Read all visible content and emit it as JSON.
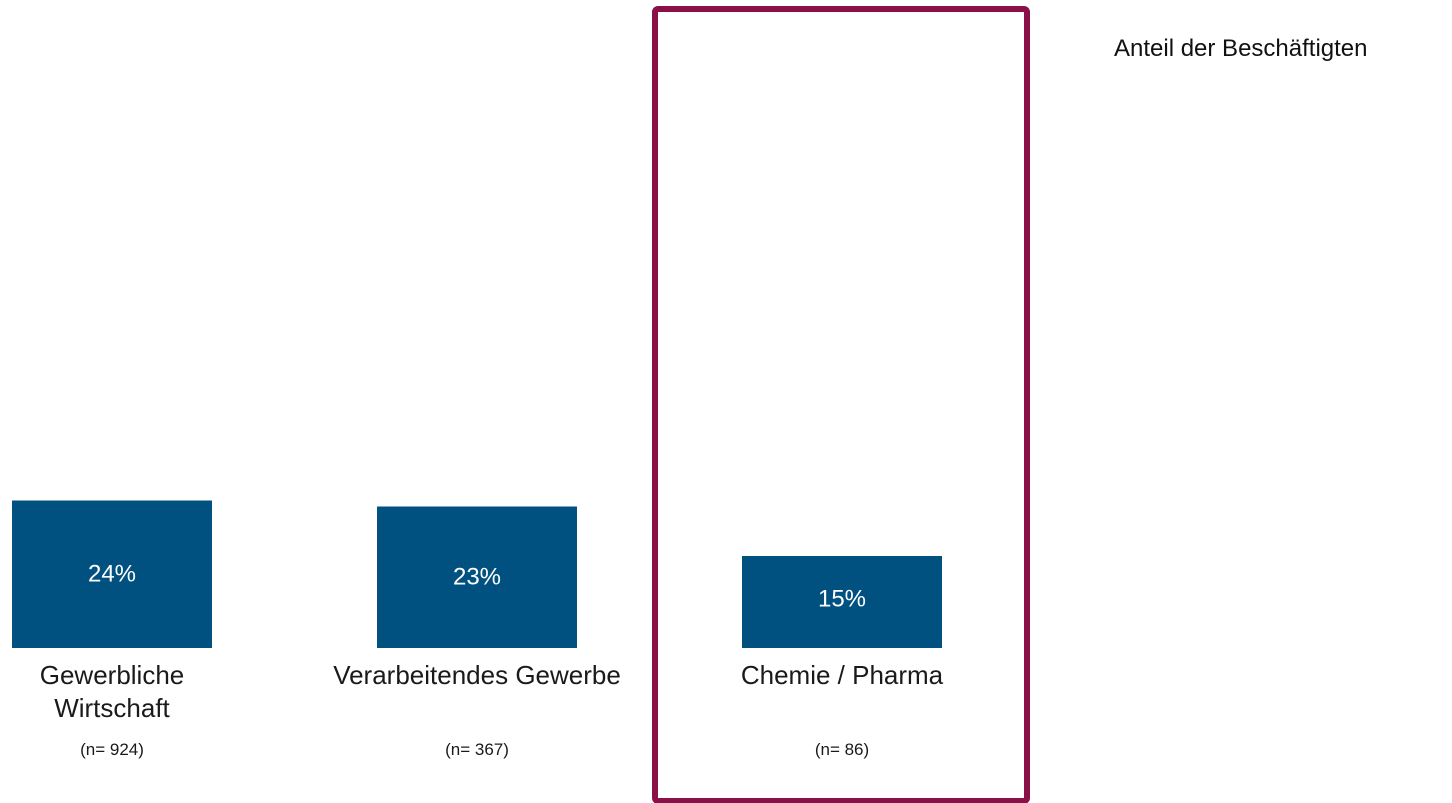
{
  "chart_data": {
    "type": "bar",
    "categories": [
      "Gewerbliche Wirtschaft",
      "Verarbeitendes Gewerbe",
      "Chemie / Pharma"
    ],
    "category_lines": [
      [
        "Gewerbliche",
        "Wirtschaft"
      ],
      [
        "Verarbeitendes Gewerbe"
      ],
      [
        "Chemie / Pharma"
      ]
    ],
    "values": [
      24,
      23,
      15
    ],
    "value_labels": [
      "24%",
      "23%",
      "15%"
    ],
    "sample_sizes": [
      "(n= 924)",
      "(n= 367)",
      "(n= 86)"
    ],
    "highlighted_category": "Chemie / Pharma",
    "series": [
      {
        "name": "Anteil der Beschäftigten",
        "values": [
          24,
          23,
          15
        ]
      }
    ],
    "legend": {
      "label": "Anteil der Beschäftigten",
      "placement": "top-right"
    },
    "ylim": [
      0,
      100
    ],
    "grid": false,
    "colors": {
      "bar": "#005180",
      "highlight_frame": "#8b1047",
      "value_text": "#ffffff",
      "text": "#1a1a1a"
    }
  }
}
